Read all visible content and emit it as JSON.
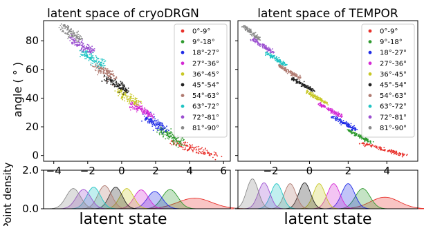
{
  "colors": [
    "#e8302a",
    "#2e9a2e",
    "#1f2be6",
    "#d42ad4",
    "#c8c826",
    "#222222",
    "#b07a70",
    "#1fc4c4",
    "#9b4fd0",
    "#8a8a8a"
  ],
  "chart_data": [
    {
      "type": "scatter",
      "title": "latent space of cryoDRGN",
      "xlabel": "",
      "ylabel": "angle ( ° )",
      "xlim": [
        -4.6,
        6.4
      ],
      "ylim": [
        -4,
        94
      ],
      "xticks": [
        -4,
        -2,
        0,
        2,
        4,
        6
      ],
      "yticks": [
        0,
        20,
        40,
        60,
        80
      ],
      "grid": false,
      "legend_position": "top-right",
      "legend": [
        "0°-9°",
        "9°-18°",
        "18°-27°",
        "27°-36°",
        "36°-45°",
        "45°-54°",
        "54°-63°",
        "63°-72°",
        "72°-81°",
        "81°-90°"
      ],
      "series": [
        {
          "name": "0°-9°",
          "x_range": [
            3.0,
            5.6
          ],
          "y_range": [
            0,
            9
          ],
          "spread": 0.35
        },
        {
          "name": "9°-18°",
          "x_range": [
            2.3,
            3.5
          ],
          "y_range": [
            9,
            18
          ],
          "spread": 0.35
        },
        {
          "name": "18°-27°",
          "x_range": [
            1.4,
            2.6
          ],
          "y_range": [
            18,
            27
          ],
          "spread": 0.35
        },
        {
          "name": "27°-36°",
          "x_range": [
            0.6,
            1.8
          ],
          "y_range": [
            27,
            36
          ],
          "spread": 0.35
        },
        {
          "name": "36°-45°",
          "x_range": [
            -0.2,
            1.0
          ],
          "y_range": [
            36,
            45
          ],
          "spread": 0.35
        },
        {
          "name": "45°-54°",
          "x_range": [
            -0.9,
            0.3
          ],
          "y_range": [
            45,
            54
          ],
          "spread": 0.35
        },
        {
          "name": "54°-63°",
          "x_range": [
            -1.6,
            -0.4
          ],
          "y_range": [
            54,
            63
          ],
          "spread": 0.35
        },
        {
          "name": "63°-72°",
          "x_range": [
            -2.3,
            -1.1
          ],
          "y_range": [
            63,
            72
          ],
          "spread": 0.35
        },
        {
          "name": "72°-81°",
          "x_range": [
            -3.0,
            -1.7
          ],
          "y_range": [
            72,
            81
          ],
          "spread": 0.35
        },
        {
          "name": "81°-90°",
          "x_range": [
            -3.5,
            -2.5
          ],
          "y_range": [
            81,
            90
          ],
          "spread": 0.35
        }
      ]
    },
    {
      "type": "scatter",
      "title": "latent space of TEMPOR",
      "xlabel": "",
      "ylabel": "",
      "xlim": [
        -3.7,
        5.6
      ],
      "ylim": [
        -4,
        94
      ],
      "xticks": [
        -2,
        0,
        2,
        4
      ],
      "yticks": [
        0,
        20,
        40,
        60,
        80
      ],
      "grid": false,
      "legend_position": "top-right",
      "legend": [
        "0°-9°",
        "9°-18°",
        "18°-27°",
        "27°-36°",
        "36°-45°",
        "45°-54°",
        "54°-63°",
        "63°-72°",
        "72°-81°",
        "81°-90°"
      ],
      "series": [
        {
          "name": "0°-9°",
          "x_range": [
            2.6,
            5.0
          ],
          "y_range": [
            0,
            9
          ],
          "spread": 0.15
        },
        {
          "name": "9°-18°",
          "x_range": [
            2.0,
            3.2
          ],
          "y_range": [
            9,
            18
          ],
          "spread": 0.15
        },
        {
          "name": "18°-27°",
          "x_range": [
            1.2,
            2.4
          ],
          "y_range": [
            18,
            27
          ],
          "spread": 0.15
        },
        {
          "name": "27°-36°",
          "x_range": [
            0.5,
            1.7
          ],
          "y_range": [
            27,
            36
          ],
          "spread": 0.15
        },
        {
          "name": "36°-45°",
          "x_range": [
            -0.2,
            0.9
          ],
          "y_range": [
            36,
            45
          ],
          "spread": 0.15
        },
        {
          "name": "45°-54°",
          "x_range": [
            -0.9,
            0.2
          ],
          "y_range": [
            45,
            54
          ],
          "spread": 0.15
        },
        {
          "name": "54°-63°",
          "x_range": [
            -1.6,
            -0.5
          ],
          "y_range": [
            54,
            63
          ],
          "spread": 0.15
        },
        {
          "name": "63°-72°",
          "x_range": [
            -2.3,
            -1.2
          ],
          "y_range": [
            63,
            72
          ],
          "spread": 0.15
        },
        {
          "name": "72°-81°",
          "x_range": [
            -2.9,
            -1.9
          ],
          "y_range": [
            72,
            81
          ],
          "spread": 0.15
        },
        {
          "name": "81°-90°",
          "x_range": [
            -3.4,
            -2.6
          ],
          "y_range": [
            81,
            90
          ],
          "spread": 0.15
        }
      ]
    },
    {
      "type": "area",
      "title": "",
      "xlabel": "latent state",
      "ylabel": "Point density",
      "xlim": [
        -4.6,
        6.4
      ],
      "ylim": [
        0,
        2.0
      ],
      "yticks": [
        0.0,
        2.0
      ],
      "ytick_labels": [
        "0.0",
        "2.0"
      ],
      "series": [
        {
          "name": "0°-9°",
          "center": 4.3,
          "width": 1.0,
          "peak": 0.55
        },
        {
          "name": "9°-18°",
          "center": 2.85,
          "width": 0.46,
          "peak": 1.0
        },
        {
          "name": "18°-27°",
          "center": 1.95,
          "width": 0.44,
          "peak": 0.9
        },
        {
          "name": "27°-36°",
          "center": 1.15,
          "width": 0.42,
          "peak": 0.98
        },
        {
          "name": "36°-45°",
          "center": 0.3,
          "width": 0.4,
          "peak": 1.05
        },
        {
          "name": "45°-54°",
          "center": -0.35,
          "width": 0.38,
          "peak": 1.12
        },
        {
          "name": "54°-63°",
          "center": -1.0,
          "width": 0.4,
          "peak": 1.2
        },
        {
          "name": "63°-72°",
          "center": -1.65,
          "width": 0.4,
          "peak": 1.12
        },
        {
          "name": "72°-81°",
          "center": -2.25,
          "width": 0.42,
          "peak": 1.0
        },
        {
          "name": "81°-90°",
          "center": -2.85,
          "width": 0.42,
          "peak": 1.05
        }
      ]
    },
    {
      "type": "area",
      "title": "",
      "xlabel": "latent state",
      "ylabel": "",
      "xlim": [
        -3.7,
        5.6
      ],
      "ylim": [
        0,
        2.0
      ],
      "series": [
        {
          "name": "0°-9°",
          "center": 3.9,
          "width": 0.75,
          "peak": 0.6
        },
        {
          "name": "9°-18°",
          "center": 2.75,
          "width": 0.38,
          "peak": 1.05
        },
        {
          "name": "18°-27°",
          "center": 2.0,
          "width": 0.34,
          "peak": 1.3
        },
        {
          "name": "27°-36°",
          "center": 1.25,
          "width": 0.32,
          "peak": 1.3
        },
        {
          "name": "36°-45°",
          "center": 0.5,
          "width": 0.3,
          "peak": 1.3
        },
        {
          "name": "45°-54°",
          "center": -0.25,
          "width": 0.3,
          "peak": 1.35
        },
        {
          "name": "54°-63°",
          "center": -1.0,
          "width": 0.3,
          "peak": 1.3
        },
        {
          "name": "63°-72°",
          "center": -1.7,
          "width": 0.3,
          "peak": 1.3
        },
        {
          "name": "72°-81°",
          "center": -2.35,
          "width": 0.3,
          "peak": 1.35
        },
        {
          "name": "81°-90°",
          "center": -2.95,
          "width": 0.3,
          "peak": 1.55
        }
      ]
    }
  ]
}
